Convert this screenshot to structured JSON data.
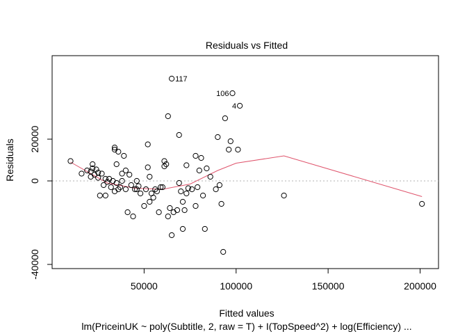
{
  "chart_data": {
    "type": "scatter",
    "title": "Residuals vs Fitted",
    "xlabel": "Fitted values",
    "ylabel": "Residuals",
    "subtitle": "lm(PriceinUK ~ poly(Subtitle, 2, raw = T) + I(TopSpeed^2) + log(Efficiency) ...",
    "xlim": [
      0,
      210000
    ],
    "ylim": [
      -42000,
      60000
    ],
    "x_ticks": [
      50000,
      100000,
      150000,
      200000
    ],
    "y_ticks": [
      -40000,
      0,
      20000
    ],
    "x_tick_labels": [
      "50000",
      "100000",
      "150000",
      "200000"
    ],
    "y_tick_labels": [
      "-40000",
      "0",
      "20000"
    ],
    "reference_line_y": 0,
    "points": [
      [
        10000,
        9500
      ],
      [
        16000,
        3500
      ],
      [
        19000,
        5000
      ],
      [
        21000,
        2000
      ],
      [
        21000,
        4500
      ],
      [
        22000,
        8000
      ],
      [
        22000,
        6000
      ],
      [
        23000,
        3000
      ],
      [
        24000,
        5500
      ],
      [
        25000,
        1500
      ],
      [
        25000,
        4000
      ],
      [
        26000,
        -7000
      ],
      [
        27000,
        3500
      ],
      [
        28000,
        -2000
      ],
      [
        29000,
        1000
      ],
      [
        29000,
        -7000
      ],
      [
        30000,
        -500
      ],
      [
        31000,
        1000
      ],
      [
        32000,
        -3000
      ],
      [
        33000,
        0
      ],
      [
        34000,
        16000
      ],
      [
        34000,
        15000
      ],
      [
        34000,
        -5000
      ],
      [
        35000,
        -1000
      ],
      [
        35000,
        8000
      ],
      [
        36000,
        -4000
      ],
      [
        36000,
        14000
      ],
      [
        37000,
        -3000
      ],
      [
        38000,
        3500
      ],
      [
        38000,
        0
      ],
      [
        39000,
        12000
      ],
      [
        40000,
        5000
      ],
      [
        40000,
        -4000
      ],
      [
        41000,
        -15000
      ],
      [
        42000,
        3000
      ],
      [
        43000,
        -2000
      ],
      [
        44000,
        -17000
      ],
      [
        45000,
        -4000
      ],
      [
        46000,
        0
      ],
      [
        46000,
        -4000
      ],
      [
        47000,
        -2500
      ],
      [
        48000,
        -6000
      ],
      [
        50000,
        -12000
      ],
      [
        51000,
        -4000
      ],
      [
        52000,
        17500
      ],
      [
        52000,
        6500
      ],
      [
        53000,
        -10000
      ],
      [
        53000,
        2000
      ],
      [
        54000,
        -6000
      ],
      [
        55000,
        -8000
      ],
      [
        56000,
        -4000
      ],
      [
        57000,
        -5000
      ],
      [
        58000,
        -15000
      ],
      [
        59000,
        -3000
      ],
      [
        60000,
        -3000
      ],
      [
        61000,
        7000
      ],
      [
        61000,
        9500
      ],
      [
        62000,
        8000
      ],
      [
        63000,
        -17000
      ],
      [
        63000,
        31000
      ],
      [
        64000,
        -13000
      ],
      [
        65000,
        -26000
      ],
      [
        65000,
        49000
      ],
      [
        66000,
        -15000
      ],
      [
        68000,
        -14000
      ],
      [
        69000,
        -1000
      ],
      [
        69000,
        22000
      ],
      [
        70000,
        -5000
      ],
      [
        71000,
        -10000
      ],
      [
        71000,
        -23000
      ],
      [
        72000,
        -14000
      ],
      [
        73000,
        -6000
      ],
      [
        73000,
        7500
      ],
      [
        74000,
        -3500
      ],
      [
        76000,
        -4000
      ],
      [
        78000,
        -12000
      ],
      [
        78000,
        12000
      ],
      [
        79000,
        -3000
      ],
      [
        80000,
        5000
      ],
      [
        81000,
        11000
      ],
      [
        82000,
        -7000
      ],
      [
        83000,
        -23000
      ],
      [
        84000,
        6000
      ],
      [
        86000,
        2000
      ],
      [
        89000,
        -4000
      ],
      [
        90000,
        21000
      ],
      [
        91000,
        -2000
      ],
      [
        92000,
        -11000
      ],
      [
        93000,
        -34000
      ],
      [
        94000,
        30000
      ],
      [
        96000,
        15000
      ],
      [
        97000,
        19000
      ],
      [
        98000,
        42000
      ],
      [
        101000,
        15000
      ],
      [
        102000,
        36000
      ],
      [
        126000,
        -7000
      ],
      [
        201000,
        -11000
      ]
    ],
    "labeled_points": [
      {
        "label": "117",
        "x": 65000,
        "y": 49000
      },
      {
        "label": "106",
        "x": 98000,
        "y": 42000
      },
      {
        "label": "4",
        "x": 102000,
        "y": 36000
      }
    ],
    "smooth_line": [
      [
        10000,
        9000
      ],
      [
        30000,
        -1000
      ],
      [
        45000,
        -3500
      ],
      [
        60000,
        -4000
      ],
      [
        75000,
        -1500
      ],
      [
        90000,
        5000
      ],
      [
        100000,
        8500
      ],
      [
        126000,
        12000
      ],
      [
        201000,
        -7500
      ]
    ],
    "colors": {
      "points": "#000000",
      "smooth": "#df536b",
      "reference": "#b3b3b3"
    },
    "grid": false
  }
}
